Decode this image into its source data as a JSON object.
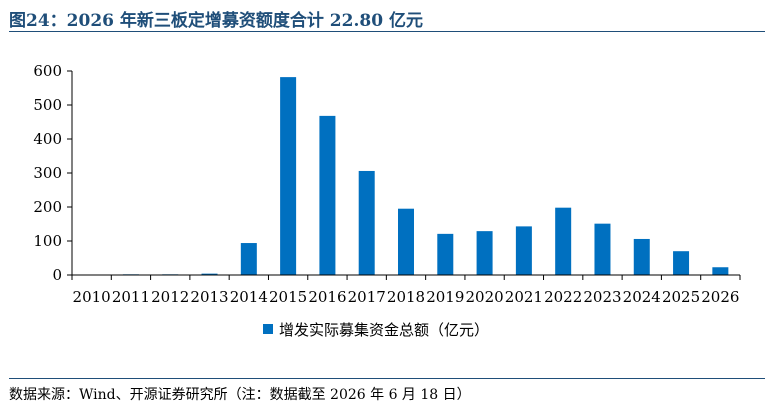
{
  "title": "图24：2026 年新三板定增募资额度合计 22.80 亿元",
  "source": "数据来源：Wind、开源证券研究所（注：数据截至 2026 年 6 月 18 日）",
  "colors": {
    "bar": "#0070c0",
    "title": "#1f4e79"
  },
  "chart_data": {
    "type": "bar",
    "categories": [
      "2010",
      "2011",
      "2012",
      "2013",
      "2014",
      "2015",
      "2016",
      "2017",
      "2018",
      "2019",
      "2020",
      "2021",
      "2022",
      "2023",
      "2024",
      "2025",
      "2026"
    ],
    "series": [
      {
        "name": "增发实际募集资金总额（亿元）",
        "values": [
          0,
          2,
          2,
          4,
          94,
          582,
          468,
          306,
          195,
          121,
          129,
          143,
          198,
          151,
          106,
          70,
          22.8
        ]
      }
    ],
    "ylim": [
      0,
      600
    ],
    "yticks": [
      0,
      100,
      200,
      300,
      400,
      500,
      600
    ],
    "grid": false,
    "legend": "bottom"
  }
}
